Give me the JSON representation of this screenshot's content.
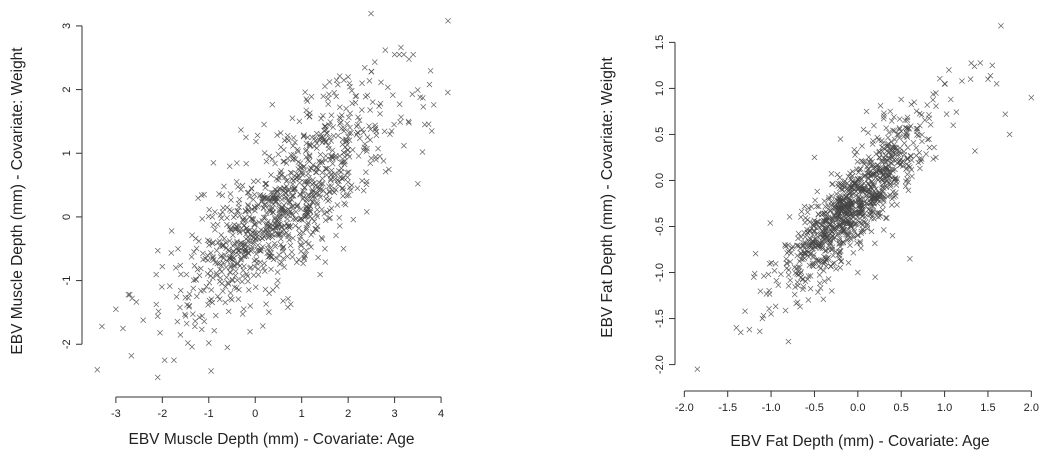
{
  "chart_data": [
    {
      "type": "scatter",
      "title": "",
      "xlabel": "EBV Muscle Depth (mm) - Covariate: Age",
      "ylabel": "EBV Muscle Depth (mm) - Covariate: Weight",
      "xlim": [
        -3.6,
        4.3
      ],
      "ylim": [
        -2.75,
        3.25
      ],
      "x_ticks": [
        "-3",
        "-2",
        "-1",
        "0",
        "1",
        "2",
        "3",
        "4"
      ],
      "y_ticks": [
        "-2",
        "-1",
        "0",
        "1",
        "2",
        "3"
      ],
      "marker": "x",
      "grid": false,
      "n_points": 1000,
      "correlation": 0.78,
      "x_mean": 0.6,
      "x_sd": 1.05,
      "y_mean": 0.2,
      "y_sd": 0.85,
      "seed": 7,
      "series": [
        {
          "values": [
            [
              -3.4,
              -2.4
            ],
            [
              -3.3,
              -1.72
            ],
            [
              -3.0,
              -1.45
            ],
            [
              -2.7,
              -1.22
            ],
            [
              -2.65,
              -1.28
            ],
            [
              -2.1,
              -2.52
            ],
            [
              -2.05,
              -1.82
            ],
            [
              -2.1,
              -1.56
            ],
            [
              -2.0,
              -0.78
            ],
            [
              -1.95,
              -2.25
            ],
            [
              -1.8,
              -0.22
            ],
            [
              -1.75,
              -2.25
            ],
            [
              -1.45,
              -1.98
            ],
            [
              -1.3,
              -1.72
            ],
            [
              -1.0,
              -1.98
            ],
            [
              -0.95,
              -2.42
            ],
            [
              -0.6,
              -2.05
            ],
            [
              -1.1,
              0.35
            ],
            [
              -0.9,
              0.85
            ],
            [
              -0.4,
              0.55
            ],
            [
              -0.2,
              1.25
            ],
            [
              0.05,
              1.28
            ],
            [
              0.3,
              0.95
            ],
            [
              0.8,
              1.55
            ],
            [
              1.1,
              1.85
            ],
            [
              1.5,
              2.05
            ],
            [
              1.6,
              2.12
            ],
            [
              1.7,
              1.95
            ],
            [
              2.0,
              2.2
            ],
            [
              2.3,
              2.1
            ],
            [
              2.5,
              2.28
            ],
            [
              2.8,
              2.62
            ],
            [
              3.0,
              2.55
            ],
            [
              3.1,
              2.55
            ],
            [
              3.2,
              2.55
            ],
            [
              3.4,
              2.55
            ],
            [
              3.2,
              1.12
            ],
            [
              3.3,
              1.5
            ],
            [
              3.55,
              1.88
            ],
            [
              3.65,
              1.45
            ],
            [
              3.6,
              1.02
            ],
            [
              3.5,
              0.52
            ],
            [
              3.75,
              2.08
            ],
            [
              3.8,
              1.35
            ],
            [
              4.15,
              3.08
            ],
            [
              2.4,
              0.08
            ],
            [
              2.2,
              0.45
            ],
            [
              1.9,
              -0.5
            ],
            [
              1.5,
              -0.5
            ],
            [
              0.6,
              -1.32
            ],
            [
              0.3,
              -1.2
            ],
            [
              1.1,
              -0.2
            ],
            [
              2.6,
              0.9
            ],
            [
              2.9,
              1.3
            ]
          ]
        }
      ]
    },
    {
      "type": "scatter",
      "title": "",
      "xlabel": "EBV Fat Depth (mm) - Covariate: Age",
      "ylabel": "EBV Fat Depth (mm) - Covariate: Weight",
      "xlim": [
        -2.05,
        2.1
      ],
      "ylim": [
        -2.2,
        1.83
      ],
      "x_ticks": [
        "-2.0",
        "-1.5",
        "-1.0",
        "-0.5",
        "0.0",
        "0.5",
        "1.0",
        "1.5",
        "2.0"
      ],
      "y_ticks": [
        "-2.0",
        "-1.5",
        "-1.0",
        "-0.5",
        "0.0",
        "0.5",
        "1.0",
        "1.5"
      ],
      "marker": "x",
      "grid": false,
      "n_points": 1000,
      "correlation": 0.85,
      "x_mean": -0.05,
      "x_sd": 0.42,
      "y_mean": -0.25,
      "y_sd": 0.45,
      "seed": 19,
      "series": [
        {
          "values": [
            [
              -1.85,
              -2.05
            ],
            [
              -1.4,
              -1.6
            ],
            [
              -1.35,
              -1.65
            ],
            [
              -1.3,
              -1.42
            ],
            [
              -1.25,
              -1.62
            ],
            [
              -0.8,
              -1.75
            ],
            [
              -1.2,
              -1.05
            ],
            [
              -1.1,
              -1.5
            ],
            [
              -1.0,
              -1.45
            ],
            [
              -0.5,
              0.25
            ],
            [
              -0.2,
              0.45
            ],
            [
              0.1,
              0.75
            ],
            [
              0.3,
              0.7
            ],
            [
              0.5,
              0.88
            ],
            [
              0.65,
              0.85
            ],
            [
              0.8,
              0.82
            ],
            [
              0.9,
              0.95
            ],
            [
              1.0,
              1.05
            ],
            [
              1.05,
              1.2
            ],
            [
              1.2,
              1.08
            ],
            [
              1.3,
              1.1
            ],
            [
              1.35,
              0.32
            ],
            [
              1.5,
              1.1
            ],
            [
              1.55,
              1.25
            ],
            [
              1.6,
              1.05
            ],
            [
              1.65,
              1.68
            ],
            [
              1.7,
              0.72
            ],
            [
              1.75,
              0.5
            ],
            [
              2.0,
              0.9
            ],
            [
              0.6,
              -0.85
            ],
            [
              0.4,
              -0.6
            ],
            [
              0.2,
              -1.05
            ],
            [
              0.0,
              -1.0
            ],
            [
              -0.3,
              -1.2
            ],
            [
              1.1,
              0.6
            ],
            [
              0.9,
              0.25
            ]
          ]
        }
      ]
    }
  ]
}
